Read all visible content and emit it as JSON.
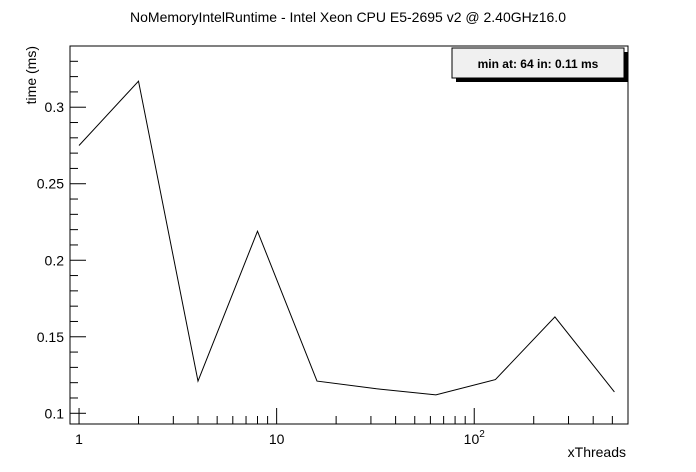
{
  "chart_data": {
    "type": "line",
    "title": "NoMemoryIntelRuntime - Intel Xeon CPU E5-2695 v2 @ 2.40GHz16.0",
    "xlabel": "xThreads",
    "ylabel": "time (ms)",
    "x_scale": "log",
    "xlim": [
      0.9,
      600
    ],
    "ylim": [
      0.093,
      0.34
    ],
    "x_ticks": [
      {
        "value": 1,
        "label": "1"
      },
      {
        "value": 10,
        "label": "10"
      },
      {
        "value": 100,
        "label": "10^2"
      }
    ],
    "y_ticks": [
      {
        "value": 0.1,
        "label": "0.1"
      },
      {
        "value": 0.15,
        "label": "0.15"
      },
      {
        "value": 0.2,
        "label": "0.2"
      },
      {
        "value": 0.25,
        "label": "0.25"
      },
      {
        "value": 0.3,
        "label": "0.3"
      }
    ],
    "series": [
      {
        "color": "#000000",
        "x": [
          1,
          2,
          4,
          8,
          16,
          32,
          64,
          128,
          256,
          512
        ],
        "y": [
          0.275,
          0.317,
          0.121,
          0.219,
          0.121,
          0.116,
          0.112,
          0.122,
          0.163,
          0.114
        ]
      }
    ],
    "annotations": [
      "min at: 64 in: 0.11 ms"
    ],
    "legend_position": "top-right",
    "grid": false
  }
}
